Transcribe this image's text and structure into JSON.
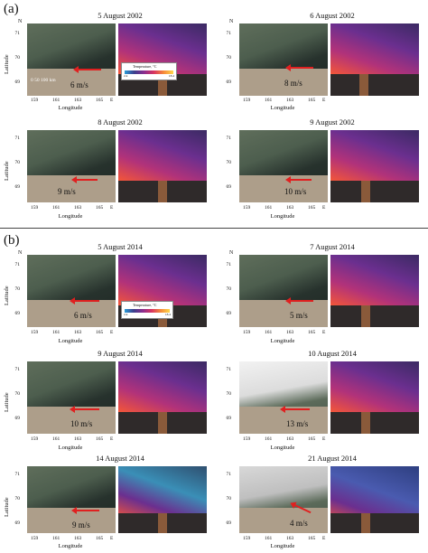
{
  "section_a": {
    "label": "(a)",
    "rows": [
      {
        "date_left": "5 August 2002",
        "date_right": "6 August 2002",
        "wind_left": "6 m/s",
        "wind_right": "8 m/s"
      },
      {
        "date_left": "8 August 2002",
        "date_right": "9 August 2002",
        "wind_left": "9 m/s",
        "wind_right": "10 m/s"
      }
    ]
  },
  "section_b": {
    "label": "(b)",
    "rows": [
      {
        "date_left": "5 August 2014",
        "date_right": "7 August 2014",
        "wind_left": "6 m/s",
        "wind_right": "5 m/s"
      },
      {
        "date_left": "9 August 2014",
        "date_right": "10 August 2014",
        "wind_left": "10 m/s",
        "wind_right": "13 m/s"
      },
      {
        "date_left": "14 August 2014",
        "date_right": "21 August 2014",
        "wind_left": "9 m/s",
        "wind_right": "4 m/s"
      }
    ]
  },
  "axes": {
    "north": "N",
    "east": "E",
    "latitude_label": "Latitude",
    "longitude_label": "Longitude",
    "lat_ticks": [
      "71",
      "70",
      "69"
    ],
    "lon_ticks": [
      "159",
      "161",
      "163",
      "165"
    ]
  },
  "scale_bar": {
    "text": "0    50   100 km"
  },
  "colorbar": {
    "title": "Temperature, °C",
    "min": "2.4",
    "max": "18.4"
  }
}
